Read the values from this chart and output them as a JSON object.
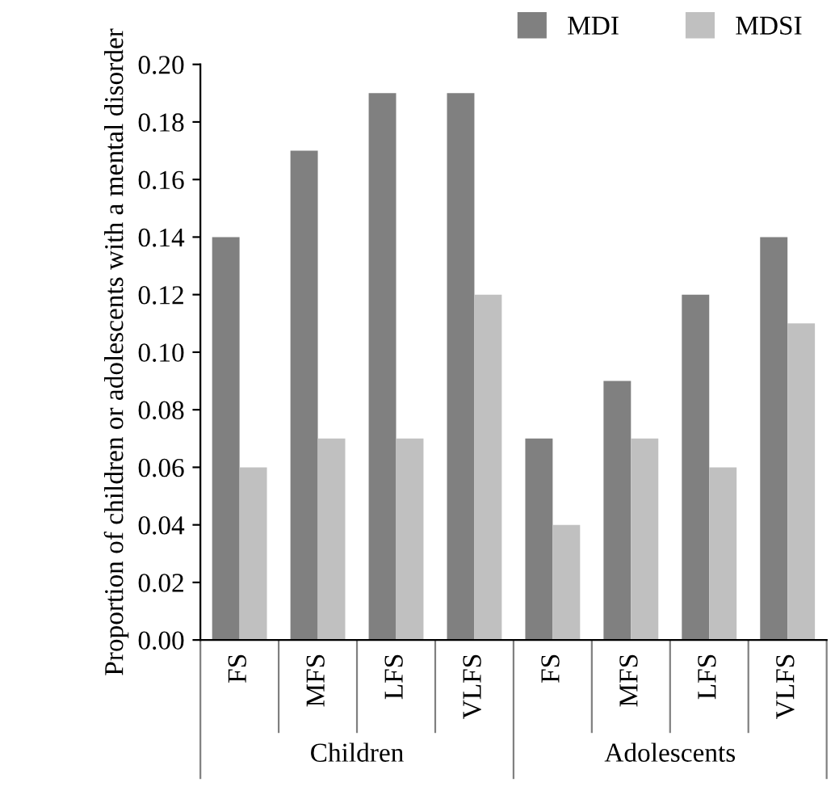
{
  "chart_data": {
    "type": "bar",
    "ylabel": "Proportion of children or adolescents with a mental disorder",
    "categories": [
      "FS",
      "MFS",
      "LFS",
      "VLFS",
      "FS",
      "MFS",
      "LFS",
      "VLFS"
    ],
    "series": [
      {
        "name": "MDI",
        "color": "#808080",
        "values": [
          0.14,
          0.17,
          0.19,
          0.19,
          0.07,
          0.09,
          0.12,
          0.14
        ]
      },
      {
        "name": "MDSI",
        "color": "#c0c0c0",
        "values": [
          0.06,
          0.07,
          0.07,
          0.12,
          0.04,
          0.07,
          0.06,
          0.11
        ]
      }
    ],
    "annotations": [
      "Children",
      "Adolescents"
    ],
    "ylim": [
      0,
      0.2
    ],
    "yticks": [
      {
        "value": 0,
        "label": "0.00"
      },
      {
        "value": 0.02,
        "label": "0.02"
      },
      {
        "value": 0.04,
        "label": "0.04"
      },
      {
        "value": 0.06,
        "label": "0.06"
      },
      {
        "value": 0.08,
        "label": "0.08"
      },
      {
        "value": 0.1,
        "label": "0.10"
      },
      {
        "value": 0.12,
        "label": "0.12"
      },
      {
        "value": 0.14,
        "label": "0.14"
      },
      {
        "value": 0.16,
        "label": "0.16"
      },
      {
        "value": 0.18,
        "label": "0.18"
      },
      {
        "value": 0.2,
        "label": "0.20"
      }
    ],
    "grid": false,
    "legend": "top right"
  }
}
